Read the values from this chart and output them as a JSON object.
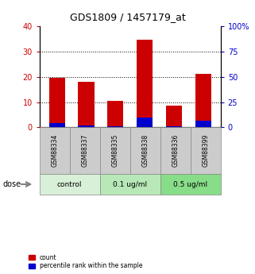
{
  "title": "GDS1809 / 1457179_at",
  "samples": [
    "GSM88334",
    "GSM88337",
    "GSM88335",
    "GSM88338",
    "GSM88336",
    "GSM88399"
  ],
  "count_values": [
    19.5,
    18.0,
    10.5,
    34.5,
    8.5,
    21.0
  ],
  "percentile_values": [
    4.0,
    2.0,
    1.5,
    10.0,
    1.5,
    6.5
  ],
  "groups": [
    {
      "label": "control",
      "indices": [
        0,
        1
      ],
      "color": "#d8f0d8"
    },
    {
      "label": "0.1 ug/ml",
      "indices": [
        2,
        3
      ],
      "color": "#b8e8b8"
    },
    {
      "label": "0.5 ug/ml",
      "indices": [
        4,
        5
      ],
      "color": "#88dd88"
    }
  ],
  "dose_label": "dose",
  "left_ylim": [
    0,
    40
  ],
  "right_ylim": [
    0,
    100
  ],
  "left_yticks": [
    0,
    10,
    20,
    30,
    40
  ],
  "right_yticks": [
    0,
    25,
    50,
    75,
    100
  ],
  "right_yticklabels": [
    "0",
    "25",
    "50",
    "75",
    "100%"
  ],
  "count_color": "#cc0000",
  "percentile_color": "#0000cc",
  "sample_box_color": "#cccccc",
  "group_colors": [
    "#d8f0d8",
    "#b8e8b8",
    "#88dd88"
  ],
  "legend_count_label": "count",
  "legend_percentile_label": "percentile rank within the sample"
}
